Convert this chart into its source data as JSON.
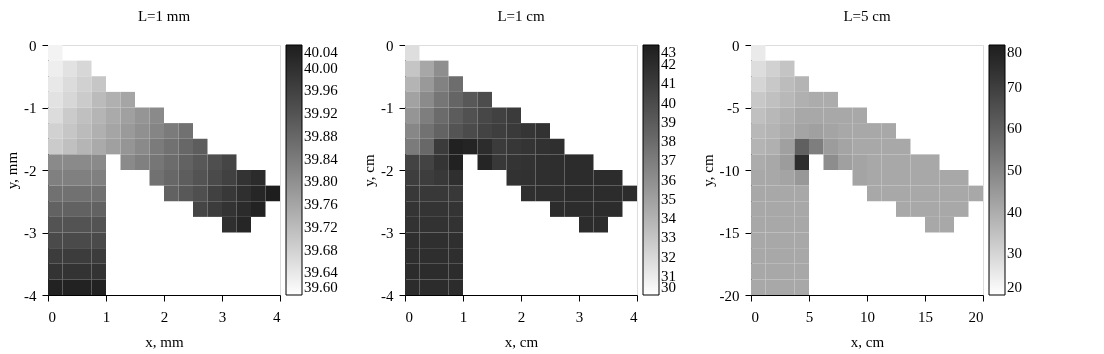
{
  "chart_data": [
    {
      "type": "heatmap",
      "title": "L=1 mm",
      "xlabel": "x, mm",
      "ylabel": "y, mm",
      "x": [
        0.125,
        0.375,
        0.625,
        0.875,
        1.125,
        1.375,
        1.625,
        1.875,
        2.125,
        2.375,
        2.625,
        2.875,
        3.125,
        3.375,
        3.625,
        3.875
      ],
      "xlim": [
        0,
        4
      ],
      "xticks": [
        0,
        1,
        2,
        3,
        4
      ],
      "ylim": [
        -4,
        0
      ],
      "yticks": [
        -4,
        -3,
        -2,
        -1,
        0
      ],
      "clim": [
        39.6,
        40.04
      ],
      "cticks": [
        {
          "value": 39.6,
          "label": "39.60"
        },
        39.64,
        39.68,
        39.72,
        39.76,
        {
          "value": 39.8,
          "label": "39.80"
        },
        39.84,
        39.88,
        39.92,
        39.96,
        {
          "value": 40.0,
          "label": "40.00"
        },
        40.04
      ],
      "cells": [
        [
          39.62,
          null,
          null,
          null,
          null,
          null,
          null,
          null,
          null,
          null,
          null,
          null,
          null,
          null,
          null,
          null
        ],
        [
          39.63,
          39.65,
          39.67,
          null,
          null,
          null,
          null,
          null,
          null,
          null,
          null,
          null,
          null,
          null,
          null,
          null
        ],
        [
          39.64,
          39.66,
          39.68,
          39.7,
          null,
          null,
          null,
          null,
          null,
          null,
          null,
          null,
          null,
          null,
          null,
          null
        ],
        [
          39.65,
          39.67,
          39.69,
          39.72,
          39.74,
          39.76,
          null,
          null,
          null,
          null,
          null,
          null,
          null,
          null,
          null,
          null
        ],
        [
          39.66,
          39.69,
          39.71,
          39.73,
          39.75,
          39.77,
          39.79,
          39.81,
          null,
          null,
          null,
          null,
          null,
          null,
          null,
          null
        ],
        [
          39.68,
          39.7,
          39.72,
          39.74,
          39.76,
          39.78,
          39.8,
          39.82,
          39.84,
          39.86,
          null,
          null,
          null,
          null,
          null,
          null
        ],
        [
          39.69,
          39.71,
          39.73,
          39.75,
          39.77,
          39.79,
          39.81,
          39.84,
          39.86,
          39.88,
          39.9,
          null,
          null,
          null,
          null,
          null
        ],
        [
          39.81,
          39.81,
          39.81,
          39.81,
          null,
          39.81,
          39.83,
          39.85,
          39.87,
          39.89,
          39.91,
          39.93,
          39.95,
          null,
          null,
          null
        ],
        [
          39.83,
          39.83,
          39.83,
          39.83,
          null,
          null,
          null,
          39.86,
          39.88,
          39.9,
          39.92,
          39.94,
          39.96,
          39.99,
          40.01,
          null
        ],
        [
          39.86,
          39.86,
          39.86,
          39.86,
          null,
          null,
          null,
          null,
          39.89,
          39.91,
          39.93,
          39.96,
          39.98,
          40.0,
          40.02,
          40.04
        ],
        [
          39.89,
          39.89,
          39.89,
          39.89,
          null,
          null,
          null,
          null,
          null,
          null,
          39.95,
          39.97,
          39.99,
          40.01,
          40.03,
          null
        ],
        [
          39.92,
          39.92,
          39.92,
          39.92,
          null,
          null,
          null,
          null,
          null,
          null,
          null,
          null,
          40.0,
          40.02,
          null,
          null
        ],
        [
          39.94,
          39.94,
          39.94,
          39.94,
          null,
          null,
          null,
          null,
          null,
          null,
          null,
          null,
          null,
          null,
          null,
          null
        ],
        [
          39.97,
          39.97,
          39.97,
          39.97,
          null,
          null,
          null,
          null,
          null,
          null,
          null,
          null,
          null,
          null,
          null,
          null
        ],
        [
          39.99,
          39.99,
          39.99,
          39.99,
          null,
          null,
          null,
          null,
          null,
          null,
          null,
          null,
          null,
          null,
          null,
          null
        ],
        [
          40.03,
          40.03,
          40.03,
          40.03,
          null,
          null,
          null,
          null,
          null,
          null,
          null,
          null,
          null,
          null,
          null,
          null
        ]
      ]
    },
    {
      "type": "heatmap",
      "title": "L=1 cm",
      "xlabel": "x, cm",
      "ylabel": "y, cm",
      "x": [
        0.125,
        0.375,
        0.625,
        0.875,
        1.125,
        1.375,
        1.625,
        1.875,
        2.125,
        2.375,
        2.625,
        2.875,
        3.125,
        3.375,
        3.625,
        3.875
      ],
      "xlim": [
        0,
        4
      ],
      "xticks": [
        0,
        1,
        2,
        3,
        4
      ],
      "ylim": [
        -4,
        0
      ],
      "yticks": [
        -4,
        -3,
        -2,
        -1,
        0
      ],
      "clim": [
        30,
        43
      ],
      "cticks": [
        30,
        31,
        32,
        33,
        34,
        35,
        36,
        37,
        38,
        39,
        40,
        41,
        42,
        43
      ],
      "cells": [
        [
          31.7,
          null,
          null,
          null,
          null,
          null,
          null,
          null,
          null,
          null,
          null,
          null,
          null,
          null,
          null,
          null
        ],
        [
          33.0,
          34.6,
          36.0,
          null,
          null,
          null,
          null,
          null,
          null,
          null,
          null,
          null,
          null,
          null,
          null,
          null
        ],
        [
          33.9,
          35.4,
          36.7,
          37.9,
          null,
          null,
          null,
          null,
          null,
          null,
          null,
          null,
          null,
          null,
          null,
          null
        ],
        [
          34.9,
          36.2,
          37.4,
          38.4,
          39.2,
          39.9,
          null,
          null,
          null,
          null,
          null,
          null,
          null,
          null,
          null,
          null
        ],
        [
          35.6,
          36.9,
          38.0,
          38.9,
          39.6,
          40.2,
          40.6,
          41.0,
          null,
          null,
          null,
          null,
          null,
          null,
          null,
          null
        ],
        [
          36.4,
          37.6,
          38.5,
          39.4,
          40.0,
          40.5,
          40.8,
          41.1,
          41.4,
          41.6,
          null,
          null,
          null,
          null,
          null,
          null
        ],
        [
          37.1,
          38.2,
          41.0,
          42.8,
          42.6,
          42.0,
          41.0,
          41.3,
          41.5,
          41.7,
          41.8,
          null,
          null,
          null,
          null,
          null
        ],
        [
          40.5,
          40.5,
          41.5,
          42.8,
          null,
          42.5,
          41.2,
          41.5,
          41.6,
          41.8,
          41.9,
          42.0,
          42.0,
          null,
          null,
          null
        ],
        [
          40.9,
          40.9,
          41.2,
          41.8,
          null,
          null,
          null,
          41.6,
          41.7,
          41.8,
          41.9,
          42.0,
          42.0,
          42.0,
          42.0,
          null
        ],
        [
          41.2,
          41.2,
          41.2,
          41.2,
          null,
          null,
          null,
          null,
          41.8,
          41.9,
          41.9,
          42.0,
          42.0,
          42.0,
          42.0,
          42.0
        ],
        [
          41.5,
          41.5,
          41.5,
          41.5,
          null,
          null,
          null,
          null,
          null,
          null,
          42.0,
          42.0,
          42.0,
          42.0,
          42.0,
          null
        ],
        [
          41.6,
          41.6,
          41.6,
          41.6,
          null,
          null,
          null,
          null,
          null,
          null,
          null,
          null,
          42.0,
          42.0,
          null,
          null
        ],
        [
          41.8,
          41.8,
          41.8,
          41.8,
          null,
          null,
          null,
          null,
          null,
          null,
          null,
          null,
          null,
          null,
          null,
          null
        ],
        [
          41.9,
          41.9,
          41.9,
          41.9,
          null,
          null,
          null,
          null,
          null,
          null,
          null,
          null,
          null,
          null,
          null,
          null
        ],
        [
          42.0,
          42.0,
          42.0,
          42.0,
          null,
          null,
          null,
          null,
          null,
          null,
          null,
          null,
          null,
          null,
          null,
          null
        ],
        [
          42.0,
          42.0,
          42.0,
          42.0,
          null,
          null,
          null,
          null,
          null,
          null,
          null,
          null,
          null,
          null,
          null,
          null
        ]
      ]
    },
    {
      "type": "heatmap",
      "title": "L=5 cm",
      "xlabel": "x, cm",
      "ylabel": "y, cm",
      "x": [
        0.625,
        1.875,
        3.125,
        4.375,
        5.625,
        6.875,
        8.125,
        9.375,
        10.625,
        11.875,
        13.125,
        14.375,
        15.625,
        16.875,
        18.125,
        19.375
      ],
      "xlim": [
        0,
        20
      ],
      "xticks": [
        0,
        5,
        10,
        15,
        20
      ],
      "ylim": [
        -20,
        0
      ],
      "yticks": [
        -20,
        -15,
        -10,
        -5,
        0
      ],
      "clim": [
        20,
        80
      ],
      "cticks": [
        20,
        30,
        40,
        50,
        60,
        70,
        80
      ],
      "cells": [
        [
          25,
          null,
          null,
          null,
          null,
          null,
          null,
          null,
          null,
          null,
          null,
          null,
          null,
          null,
          null,
          null
        ],
        [
          28,
          31,
          34,
          null,
          null,
          null,
          null,
          null,
          null,
          null,
          null,
          null,
          null,
          null,
          null,
          null
        ],
        [
          30,
          33,
          36,
          38,
          null,
          null,
          null,
          null,
          null,
          null,
          null,
          null,
          null,
          null,
          null,
          null
        ],
        [
          33,
          35,
          37,
          39,
          40,
          40,
          null,
          null,
          null,
          null,
          null,
          null,
          null,
          null,
          null,
          null
        ],
        [
          35,
          37,
          39,
          41,
          41,
          41,
          41,
          41,
          null,
          null,
          null,
          null,
          null,
          null,
          null,
          null
        ],
        [
          37,
          38,
          40,
          42,
          43,
          42,
          41,
          41,
          41,
          41,
          null,
          null,
          null,
          null,
          null,
          null
        ],
        [
          38,
          39,
          43,
          60,
          52,
          44,
          42,
          41,
          41,
          41,
          41,
          null,
          null,
          null,
          null,
          null
        ],
        [
          40,
          41,
          44,
          75,
          null,
          48,
          43,
          42,
          41,
          41,
          41,
          41,
          41,
          null,
          null,
          null
        ],
        [
          41,
          41,
          42,
          45,
          null,
          null,
          null,
          42,
          41,
          41,
          41,
          41,
          41,
          41,
          41,
          null
        ],
        [
          41,
          41,
          41,
          41,
          null,
          null,
          null,
          null,
          41,
          41,
          41,
          41,
          41,
          41,
          41,
          41
        ],
        [
          41,
          41,
          41,
          41,
          null,
          null,
          null,
          null,
          null,
          null,
          41,
          41,
          41,
          41,
          41,
          null
        ],
        [
          41,
          41,
          41,
          41,
          null,
          null,
          null,
          null,
          null,
          null,
          null,
          null,
          41,
          41,
          null,
          null
        ],
        [
          41,
          41,
          41,
          41,
          null,
          null,
          null,
          null,
          null,
          null,
          null,
          null,
          null,
          null,
          null,
          null
        ],
        [
          41,
          41,
          41,
          41,
          null,
          null,
          null,
          null,
          null,
          null,
          null,
          null,
          null,
          null,
          null,
          null
        ],
        [
          41,
          41,
          41,
          41,
          null,
          null,
          null,
          null,
          null,
          null,
          null,
          null,
          null,
          null,
          null,
          null
        ],
        [
          41,
          41,
          41,
          41,
          null,
          null,
          null,
          null,
          null,
          null,
          null,
          null,
          null,
          null,
          null,
          null
        ]
      ]
    }
  ]
}
